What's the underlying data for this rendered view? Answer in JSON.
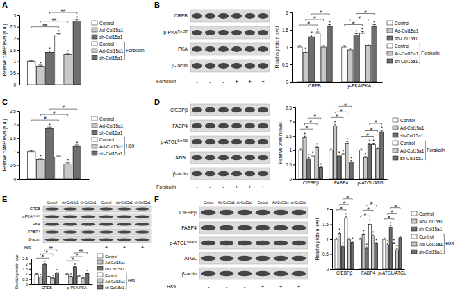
{
  "chart_data": [
    {
      "type": "bar",
      "title": "A",
      "ylabel": "Relative cAMP level (a.u.)",
      "treatment": "Forskolin",
      "categories": [
        null
      ],
      "ylim": [
        0,
        3
      ],
      "yticks": [
        0,
        0.5,
        1,
        1.5,
        2,
        2.5,
        3
      ],
      "tick_labels": "y",
      "series": [
        {
          "name": "Control",
          "color": "#ffffff",
          "values": [
            1
          ],
          "errors": [
            0.04
          ],
          "annotations": [
            null
          ]
        },
        {
          "name": "Ad-Col15a1",
          "color": "#c8c8c8",
          "values": [
            0.8
          ],
          "errors": [
            0.04
          ],
          "annotations": [
            "*"
          ]
        },
        {
          "name": "sh-Col15a1",
          "color": "#6e6e6e",
          "values": [
            1.4
          ],
          "errors": [
            0.06
          ],
          "annotations": [
            "*"
          ]
        },
        {
          "name": "Control",
          "color": "#ffffff",
          "values": [
            2.15
          ],
          "errors": [
            0.05
          ],
          "annotations": [
            "*"
          ]
        },
        {
          "name": "Ad-Col15a1",
          "color": "#c8c8c8",
          "values": [
            1.3
          ],
          "errors": [
            0.05
          ],
          "annotations": [
            "*"
          ]
        },
        {
          "name": "sh-Col15a1",
          "color": "#6e6e6e",
          "values": [
            2.75
          ],
          "errors": [
            0.07
          ],
          "annotations": [
            "*"
          ]
        }
      ],
      "brackets": [
        {
          "category": 0,
          "from": 0,
          "to": 3,
          "label": "##"
        },
        {
          "category": 0,
          "from": 1,
          "to": 4,
          "label": "##"
        },
        {
          "category": 0,
          "from": 2,
          "to": 5,
          "label": "##"
        }
      ]
    },
    {
      "type": "bar",
      "title": "B",
      "ylabel": "Relative protein level",
      "treatment": "Forskolin",
      "blot": {
        "rows": [
          {
            "label": "CREB"
          },
          {
            "label": "p-PKA",
            "sup": "Thr197"
          },
          {
            "label": "PKA"
          },
          {
            "label": "β- actin"
          }
        ],
        "treatment_signs": [
          "-",
          "-",
          "-",
          "+",
          "+",
          "+"
        ]
      },
      "categories": [
        "CREB",
        "p-PKA/PKA"
      ],
      "ylim": [
        0,
        2
      ],
      "yticks": [
        0,
        0.5,
        1,
        1.5,
        2
      ],
      "series": [
        {
          "name": "Control",
          "color": "#ffffff",
          "values": [
            1,
            1
          ],
          "errors": [
            0.04,
            0.04
          ],
          "annotations": [
            null,
            null
          ]
        },
        {
          "name": "Ad-Col15a1",
          "color": "#c8c8c8",
          "values": [
            0.85,
            0.92
          ],
          "errors": [
            0.04,
            0.04
          ],
          "annotations": [
            "*",
            null
          ]
        },
        {
          "name": "sh-Col15a1",
          "color": "#6e6e6e",
          "values": [
            1.3,
            1.35
          ],
          "errors": [
            0.05,
            0.04
          ],
          "annotations": [
            "*",
            "*"
          ]
        },
        {
          "name": "Control",
          "color": "#ffffff",
          "values": [
            1.4,
            1.4
          ],
          "errors": [
            0.04,
            0.05
          ],
          "annotations": [
            "*",
            "*"
          ]
        },
        {
          "name": "Ad-Col15a1",
          "color": "#c8c8c8",
          "values": [
            1,
            1.05
          ],
          "errors": [
            0.04,
            0.04
          ],
          "annotations": [
            null,
            null
          ]
        },
        {
          "name": "sh-Col15a1",
          "color": "#6e6e6e",
          "values": [
            1.6,
            1.6
          ],
          "errors": [
            0.05,
            0.05
          ],
          "annotations": [
            "*",
            "*"
          ]
        }
      ],
      "brackets": [
        {
          "category": 0,
          "from": 0,
          "to": 3,
          "label": "#"
        },
        {
          "category": 0,
          "from": 1,
          "to": 4,
          "label": "#"
        },
        {
          "category": 0,
          "from": 2,
          "to": 5,
          "label": "#"
        },
        {
          "category": 1,
          "from": 0,
          "to": 3,
          "label": "#"
        },
        {
          "category": 1,
          "from": 1,
          "to": 4,
          "label": "#"
        },
        {
          "category": 1,
          "from": 2,
          "to": 5,
          "label": "#"
        }
      ]
    },
    {
      "type": "bar",
      "title": "C",
      "ylabel": "Relative cAMP level (a.u.)",
      "treatment": "H89",
      "categories": [
        null
      ],
      "ylim": [
        0,
        2.5
      ],
      "yticks": [
        0,
        0.5,
        1,
        1.5,
        2,
        2.5
      ],
      "tick_labels": "y",
      "series": [
        {
          "name": "Control",
          "color": "#ffffff",
          "values": [
            1
          ],
          "errors": [
            0.04
          ],
          "annotations": [
            null
          ]
        },
        {
          "name": "Ad-Col15a1",
          "color": "#c8c8c8",
          "values": [
            0.7
          ],
          "errors": [
            0.04
          ],
          "annotations": [
            "*"
          ]
        },
        {
          "name": "sh-Col15a1",
          "color": "#6e6e6e",
          "values": [
            1.85
          ],
          "errors": [
            0.06
          ],
          "annotations": [
            "*"
          ]
        },
        {
          "name": "Control",
          "color": "#ffffff",
          "values": [
            0.8
          ],
          "errors": [
            0.04
          ],
          "annotations": [
            null
          ]
        },
        {
          "name": "Ad-Col15a1",
          "color": "#c8c8c8",
          "values": [
            0.55
          ],
          "errors": [
            0.04
          ],
          "annotations": [
            "*"
          ]
        },
        {
          "name": "sh-Col15a1",
          "color": "#6e6e6e",
          "values": [
            1.2
          ],
          "errors": [
            0.05
          ],
          "annotations": [
            "*"
          ]
        }
      ],
      "brackets": [
        {
          "category": 0,
          "from": 0,
          "to": 3,
          "label": "#"
        },
        {
          "category": 0,
          "from": 1,
          "to": 4,
          "label": "#"
        },
        {
          "category": 0,
          "from": 2,
          "to": 5,
          "label": "#"
        }
      ]
    },
    {
      "type": "bar",
      "title": "D",
      "ylabel": "Relative protein level",
      "treatment": "Forskolin",
      "blot": {
        "rows": [
          {
            "label": "C/EBPβ"
          },
          {
            "label": "FABP4"
          },
          {
            "label": "p-ATGL",
            "sup": "Ser406"
          },
          {
            "label": "ATGL"
          },
          {
            "label": "β-actin"
          }
        ],
        "treatment_signs": [
          "-",
          "-",
          "-",
          "+",
          "+",
          "+"
        ]
      },
      "categories": [
        "C/EBPβ",
        "FABP4",
        "p-ATGL/ATGL"
      ],
      "ylim": [
        0,
        2.5
      ],
      "yticks": [
        0,
        0.5,
        1,
        1.5,
        2,
        2.5
      ],
      "series": [
        {
          "name": "Control",
          "color": "#ffffff",
          "values": [
            1,
            1,
            1
          ],
          "errors": [
            0.04,
            0.04,
            0.04
          ],
          "annotations": [
            null,
            null,
            null
          ]
        },
        {
          "name": "Ad-Col15a1",
          "color": "#c8c8c8",
          "values": [
            1.45,
            1.85,
            0.75
          ],
          "errors": [
            0.05,
            0.06,
            0.04
          ],
          "annotations": [
            "*",
            "*",
            "*"
          ]
        },
        {
          "name": "sh-Col15a1",
          "color": "#6e6e6e",
          "values": [
            0.7,
            0.8,
            1.2
          ],
          "errors": [
            0.04,
            0.04,
            0.05
          ],
          "annotations": [
            "*",
            "*",
            "*"
          ]
        },
        {
          "name": "Control",
          "color": "#ffffff",
          "values": [
            0.8,
            0.85,
            1.2
          ],
          "errors": [
            0.04,
            0.04,
            0.05
          ],
          "annotations": [
            "*",
            "*",
            "*"
          ]
        },
        {
          "name": "Ad-Col15a1",
          "color": "#c8c8c8",
          "values": [
            1.1,
            1.25,
            1.05
          ],
          "errors": [
            0.04,
            0.05,
            0.04
          ],
          "annotations": [
            "*",
            "*",
            null
          ]
        },
        {
          "name": "sh-Col15a1",
          "color": "#6e6e6e",
          "values": [
            0.4,
            0.6,
            1.65
          ],
          "errors": [
            0.03,
            0.04,
            0.05
          ],
          "annotations": [
            "*",
            "*",
            "*"
          ]
        }
      ],
      "brackets": [
        {
          "category": 0,
          "from": 0,
          "to": 3,
          "label": "#"
        },
        {
          "category": 0,
          "from": 1,
          "to": 4,
          "label": "#"
        },
        {
          "category": 0,
          "from": 2,
          "to": 5,
          "label": "#"
        },
        {
          "category": 1,
          "from": 0,
          "to": 3,
          "label": "#"
        },
        {
          "category": 1,
          "from": 1,
          "to": 4,
          "label": "#"
        },
        {
          "category": 1,
          "from": 2,
          "to": 5,
          "label": "#"
        },
        {
          "category": 2,
          "from": 0,
          "to": 3,
          "label": "#"
        },
        {
          "category": 2,
          "from": 1,
          "to": 4,
          "label": "#"
        },
        {
          "category": 2,
          "from": 2,
          "to": 5,
          "label": "#"
        }
      ]
    },
    {
      "type": "bar",
      "title": "E",
      "ylabel": "Relative protein level",
      "treatment": "H89",
      "blot": {
        "lanes": [
          "Control",
          "Ad-Col15a1",
          "sh-Col15a1",
          "Control",
          "Ad-Col15a1",
          "sh-Col15a1"
        ],
        "rows": [
          {
            "label": "CREB"
          },
          {
            "label": "p-PKA",
            "sup": "Thr197"
          },
          {
            "label": "PKA"
          },
          {
            "label": "FABP4"
          },
          {
            "label": "β-actin"
          }
        ],
        "treatment_signs": [
          "-",
          "-",
          "-",
          "+",
          "+",
          "+"
        ]
      },
      "categories": [
        "CREB",
        "p-PKA/PKA"
      ],
      "ylim": [
        0,
        2.5
      ],
      "yticks": [
        0,
        0.5,
        1,
        1.5,
        2,
        2.5
      ],
      "series": [
        {
          "name": "Control",
          "color": "#ffffff",
          "values": [
            1,
            1
          ],
          "errors": [
            0.04,
            0.04
          ],
          "annotations": [
            null,
            null
          ]
        },
        {
          "name": "Ad-Col15a1",
          "color": "#c8c8c8",
          "values": [
            0.7,
            0.75
          ],
          "errors": [
            0.04,
            0.04
          ],
          "annotations": [
            "*",
            "*"
          ]
        },
        {
          "name": "sh-Col15a1",
          "color": "#6e6e6e",
          "values": [
            1.95,
            1.7
          ],
          "errors": [
            0.06,
            0.05
          ],
          "annotations": [
            "*",
            "*"
          ]
        },
        {
          "name": "Control",
          "color": "#ffffff",
          "values": [
            0.75,
            0.8
          ],
          "errors": [
            0.04,
            0.04
          ],
          "annotations": [
            null,
            null
          ]
        },
        {
          "name": "Ad-Col15a1",
          "color": "#c8c8c8",
          "values": [
            0.6,
            0.6
          ],
          "errors": [
            0.04,
            0.04
          ],
          "annotations": [
            "*",
            "*"
          ]
        },
        {
          "name": "sh-Col15a1",
          "color": "#6e6e6e",
          "values": [
            1.1,
            1.05
          ],
          "errors": [
            0.05,
            0.04
          ],
          "annotations": [
            "*",
            "*"
          ]
        }
      ],
      "brackets": [
        {
          "category": 0,
          "from": 0,
          "to": 3,
          "label": "#"
        },
        {
          "category": 0,
          "from": 1,
          "to": 4,
          "label": "#"
        },
        {
          "category": 0,
          "from": 2,
          "to": 5,
          "label": "##"
        },
        {
          "category": 1,
          "from": 0,
          "to": 3,
          "label": "#"
        },
        {
          "category": 1,
          "from": 1,
          "to": 4,
          "label": "#"
        },
        {
          "category": 1,
          "from": 2,
          "to": 5,
          "label": "##"
        }
      ]
    },
    {
      "type": "bar",
      "title": "F",
      "ylabel": "Relative protein level",
      "treatment": "H89",
      "blot": {
        "lanes": [
          "Control",
          "Ad-Col15a1",
          "sh-Col15a1",
          "Control",
          "Ad-Col15a1",
          "sh-Col15a1"
        ],
        "rows": [
          {
            "label": "C/EBPβ"
          },
          {
            "label": "FABP4"
          },
          {
            "label": "p-ATGL",
            "sup": "Ser406"
          },
          {
            "label": "ATGL"
          },
          {
            "label": "β-actin"
          }
        ],
        "treatment_signs": [
          "-",
          "-",
          "-",
          "+",
          "+",
          "+"
        ]
      },
      "categories": [
        "C/EBPβ",
        "FABP4",
        "p-ATGL/ATGL"
      ],
      "ylim": [
        0,
        2
      ],
      "yticks": [
        0,
        0.5,
        1,
        1.5,
        2
      ],
      "series": [
        {
          "name": "Control",
          "color": "#ffffff",
          "values": [
            1,
            1,
            1
          ],
          "errors": [
            0.04,
            0.04,
            0.04
          ],
          "annotations": [
            null,
            null,
            null
          ]
        },
        {
          "name": "Ad-Col15a1",
          "color": "#c8c8c8",
          "values": [
            1.2,
            1.15,
            0.8
          ],
          "errors": [
            0.04,
            0.04,
            0.04
          ],
          "annotations": [
            "*",
            "*",
            "*"
          ]
        },
        {
          "name": "sh-Col15a1",
          "color": "#6e6e6e",
          "values": [
            0.75,
            0.7,
            1.4
          ],
          "errors": [
            0.04,
            0.04,
            0.05
          ],
          "annotations": [
            "*",
            "*",
            "*"
          ]
        },
        {
          "name": "Control",
          "color": "#ffffff",
          "values": [
            1.7,
            1.5,
            0.85
          ],
          "errors": [
            0.05,
            0.05,
            0.04
          ],
          "annotations": [
            "*",
            "*",
            "*"
          ]
        },
        {
          "name": "Ad-Col15a1",
          "color": "#c8c8c8",
          "values": [
            1,
            1.1,
            0.65
          ],
          "errors": [
            0.04,
            0.04,
            0.04
          ],
          "annotations": [
            null,
            "*",
            "*"
          ]
        },
        {
          "name": "sh-Col15a1",
          "color": "#6e6e6e",
          "values": [
            0.9,
            0.85,
            1.05
          ],
          "errors": [
            0.04,
            0.04,
            0.04
          ],
          "annotations": [
            "*",
            "*",
            null
          ]
        }
      ],
      "brackets": [
        {
          "category": 0,
          "from": 0,
          "to": 3,
          "label": "#"
        },
        {
          "category": 0,
          "from": 1,
          "to": 4,
          "label": "#"
        },
        {
          "category": 0,
          "from": 2,
          "to": 5,
          "label": "#"
        },
        {
          "category": 1,
          "from": 0,
          "to": 3,
          "label": "#"
        },
        {
          "category": 1,
          "from": 1,
          "to": 4,
          "label": "#"
        },
        {
          "category": 1,
          "from": 2,
          "to": 5,
          "label": "#"
        },
        {
          "category": 2,
          "from": 0,
          "to": 3,
          "label": "#"
        },
        {
          "category": 2,
          "from": 1,
          "to": 4,
          "label": "#"
        },
        {
          "category": 2,
          "from": 2,
          "to": 5,
          "label": "#"
        }
      ]
    }
  ]
}
